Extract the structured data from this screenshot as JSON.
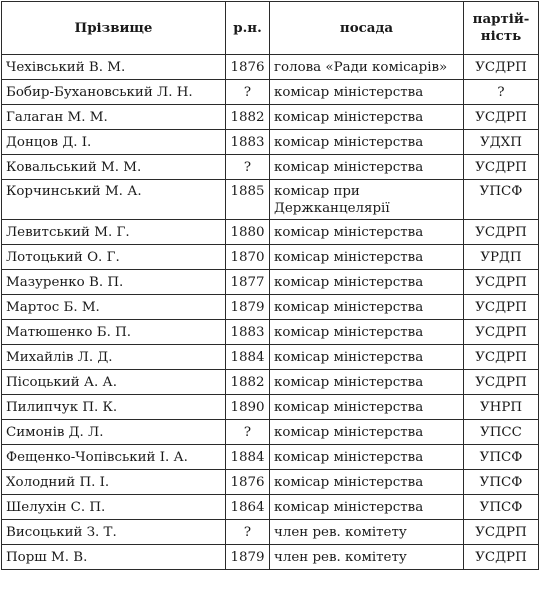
{
  "header": {
    "name": "Прізвище",
    "year": "р.н.",
    "position": "посада",
    "party_line1": "партій-",
    "party_line2": "ність"
  },
  "rows": [
    {
      "name": "Чехівський В. М.",
      "year": "1876",
      "position": "голова «Ради комісарів»",
      "party": "УСДРП"
    },
    {
      "name": "Бобир-Бухановський Л. Н.",
      "year": "?",
      "position": "комісар міністерства",
      "party": "?"
    },
    {
      "name": "Галаган М. М.",
      "year": "1882",
      "position": "комісар міністерства",
      "party": "УСДРП"
    },
    {
      "name": "Донцов Д. І.",
      "year": "1883",
      "position": "комісар міністерства",
      "party": "УДХП"
    },
    {
      "name": "Ковальський М. М.",
      "year": "?",
      "position": "комісар міністерства",
      "party": "УСДРП"
    },
    {
      "name": "Корчинський М. А.",
      "year": "1885",
      "position": "комісар при Держканцелярії",
      "party": "УПСФ"
    },
    {
      "name": "Левитський М. Г.",
      "year": "1880",
      "position": "комісар міністерства",
      "party": "УСДРП"
    },
    {
      "name": "Лотоцький О. Г.",
      "year": "1870",
      "position": "комісар міністерства",
      "party": "УРДП"
    },
    {
      "name": "Мазуренко В. П.",
      "year": "1877",
      "position": "комісар міністерства",
      "party": "УСДРП"
    },
    {
      "name": "Мартос Б. М.",
      "year": "1879",
      "position": "комісар міністерства",
      "party": "УСДРП"
    },
    {
      "name": "Матюшенко Б. П.",
      "year": "1883",
      "position": "комісар міністерства",
      "party": "УСДРП"
    },
    {
      "name": "Михайлів Л. Д.",
      "year": "1884",
      "position": "комісар міністерства",
      "party": "УСДРП"
    },
    {
      "name": "Пісоцький А. А.",
      "year": "1882",
      "position": "комісар міністерства",
      "party": "УСДРП"
    },
    {
      "name": "Пилипчук П. К.",
      "year": "1890",
      "position": "комісар міністерства",
      "party": "УНРП"
    },
    {
      "name": "Симонів Д. Л.",
      "year": "?",
      "position": "комісар міністерства",
      "party": "УПСС"
    },
    {
      "name": "Фещенко-Чопівський І. А.",
      "year": "1884",
      "position": "комісар міністерства",
      "party": "УПСФ"
    },
    {
      "name": "Холодний П. І.",
      "year": "1876",
      "position": "комісар міністерства",
      "party": "УПСФ"
    },
    {
      "name": "Шелухін С. П.",
      "year": "1864",
      "position": "комісар міністерства",
      "party": "УПСФ"
    },
    {
      "name": "Висоцький З. Т.",
      "year": "?",
      "position": "член рев. комітету",
      "party": "УСДРП"
    },
    {
      "name": "Порш М. В.",
      "year": "1879",
      "position": "член рев. комітету",
      "party": "УСДРП"
    }
  ]
}
